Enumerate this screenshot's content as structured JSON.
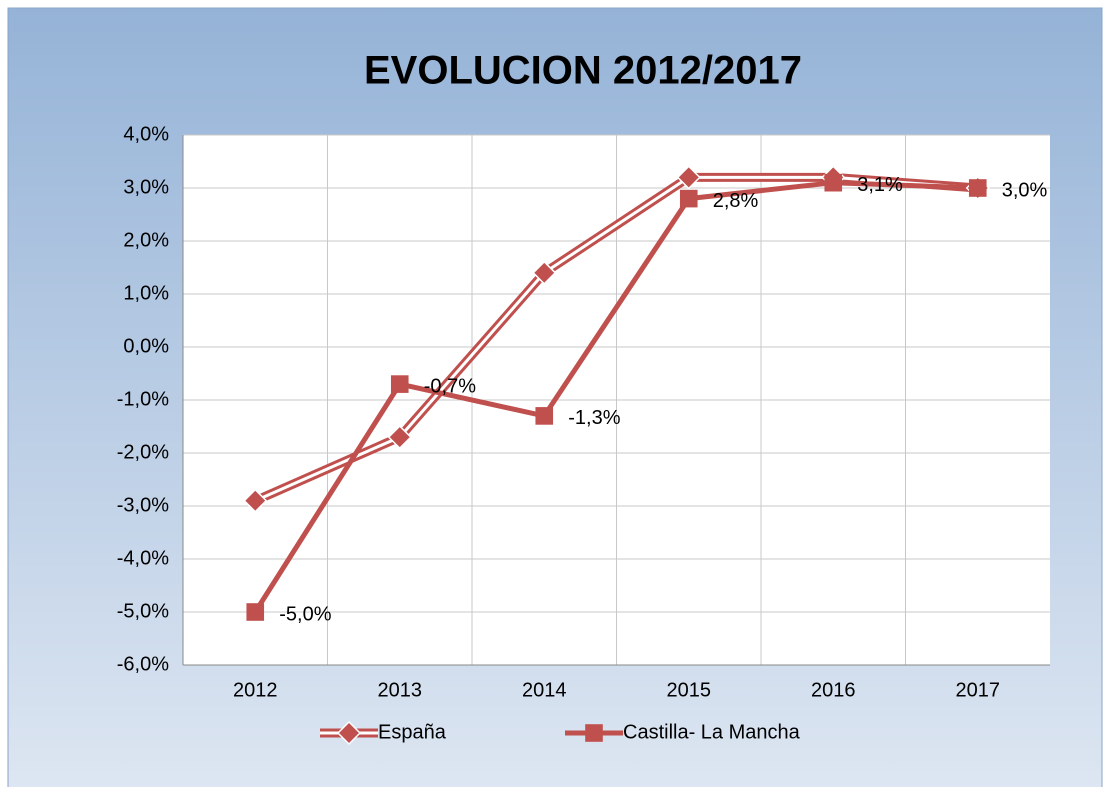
{
  "chart_data": {
    "type": "line",
    "title": "EVOLUCION 2012/2017",
    "categories": [
      "2012",
      "2013",
      "2014",
      "2015",
      "2016",
      "2017"
    ],
    "series": [
      {
        "name": "España",
        "color": "#c0504d",
        "marker": "diamond",
        "values": [
          -2.9,
          -1.7,
          1.4,
          3.2,
          3.2,
          3.0
        ]
      },
      {
        "name": "Castilla- La Mancha",
        "color": "#c0504d",
        "marker": "square",
        "values": [
          -5.0,
          -0.7,
          -1.3,
          2.8,
          3.1,
          3.0
        ],
        "value_labels": [
          "-5,0%",
          "-0,7%",
          "-1,3%",
          "2,8%",
          "3,1%",
          "3,0%"
        ]
      }
    ],
    "ylim": [
      -6,
      4
    ],
    "yticks": [
      {
        "value": -6,
        "label": "-6,0%"
      },
      {
        "value": -5,
        "label": "-5,0%"
      },
      {
        "value": -4,
        "label": "-4,0%"
      },
      {
        "value": -3,
        "label": "-3,0%"
      },
      {
        "value": -2,
        "label": "-2,0%"
      },
      {
        "value": -1,
        "label": "-1,0%"
      },
      {
        "value": 0,
        "label": "0,0%"
      },
      {
        "value": 1,
        "label": "1,0%"
      },
      {
        "value": 2,
        "label": "2,0%"
      },
      {
        "value": 3,
        "label": "3,0%"
      },
      {
        "value": 4,
        "label": "4,0%"
      }
    ],
    "grid": true,
    "legend": "bottom"
  }
}
